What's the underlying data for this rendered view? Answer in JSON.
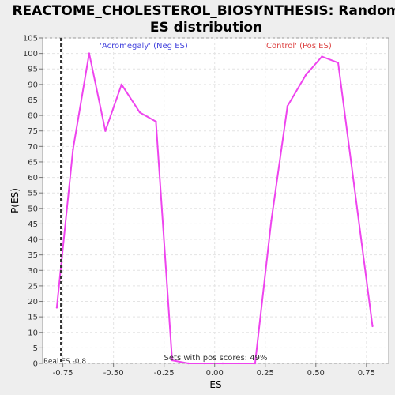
{
  "chart_data": {
    "type": "line",
    "title": "REACTOME_CHOLESTEROL_BIOSYNTHESIS: Random ES distribution",
    "title_lines": [
      "REACTOME_CHOLESTEROL_BIOSYNTHESIS: Random",
      "ES distribution"
    ],
    "xlabel": "ES",
    "ylabel": "P(ES)",
    "xlim": [
      -0.85,
      0.86
    ],
    "ylim": [
      0,
      105
    ],
    "x_ticks": [
      -0.75,
      -0.5,
      -0.25,
      0.0,
      0.25,
      0.5,
      0.75
    ],
    "x_tick_labels": [
      "-0.75",
      "-0.50",
      "-0.25",
      "0.00",
      "0.25",
      "0.50",
      "0.75"
    ],
    "y_ticks": [
      0,
      5,
      10,
      15,
      20,
      25,
      30,
      35,
      40,
      45,
      50,
      55,
      60,
      65,
      70,
      75,
      80,
      85,
      90,
      95,
      100,
      105
    ],
    "grid": true,
    "series": [
      {
        "color": "#ee44ee",
        "x": [
          -0.78,
          -0.7,
          -0.62,
          -0.54,
          -0.46,
          -0.37,
          -0.29,
          -0.21,
          -0.13,
          -0.05,
          0.04,
          0.12,
          0.2,
          0.28,
          0.36,
          0.45,
          0.53,
          0.61,
          0.69,
          0.78
        ],
        "y": [
          18,
          69,
          100,
          75,
          90,
          81,
          78,
          1,
          0,
          0,
          0,
          0,
          0,
          46,
          83,
          93,
          99,
          97,
          57,
          12
        ]
      }
    ],
    "real_es": -0.76,
    "real_es_label": "Real ES -0.8",
    "annotations": {
      "neg_label": "'Acromegaly' (Neg ES)",
      "neg_color": "#4444dd",
      "pos_label": "'Control' (Pos ES)",
      "pos_color": "#dd4444",
      "pos_scores_label": "Sets with pos scores: 49%"
    }
  }
}
